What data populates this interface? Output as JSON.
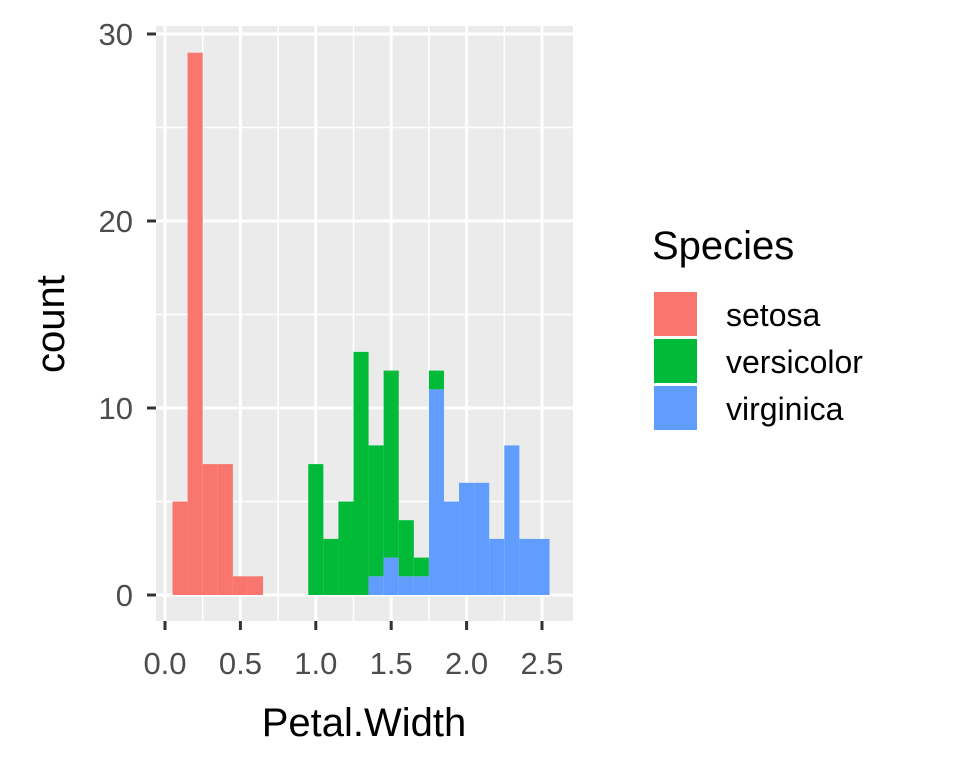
{
  "chart_data": {
    "type": "bar",
    "subtype": "stacked-histogram",
    "title": "",
    "xlabel": "Petal.Width",
    "ylabel": "count",
    "xlim": [
      0.0,
      2.6
    ],
    "ylim": [
      0,
      30
    ],
    "x_ticks": [
      "0.0",
      "0.5",
      "1.0",
      "1.5",
      "2.0",
      "2.5"
    ],
    "y_ticks": [
      "0",
      "10",
      "20",
      "30"
    ],
    "grid": true,
    "bin_width": 0.1,
    "bin_starts": [
      0.05,
      0.15,
      0.25,
      0.35,
      0.45,
      0.55,
      0.65,
      0.75,
      0.85,
      0.95,
      1.05,
      1.15,
      1.25,
      1.35,
      1.45,
      1.55,
      1.65,
      1.75,
      1.85,
      1.95,
      2.05,
      2.15,
      2.25,
      2.35,
      2.45
    ],
    "legend": {
      "title": "Species",
      "position": "right"
    },
    "series": [
      {
        "name": "setosa",
        "color": "#F8766D",
        "values": [
          5,
          29,
          7,
          7,
          1,
          1,
          0,
          0,
          0,
          0,
          0,
          0,
          0,
          0,
          0,
          0,
          0,
          0,
          0,
          0,
          0,
          0,
          0,
          0,
          0
        ]
      },
      {
        "name": "versicolor",
        "color": "#00BA38",
        "values": [
          0,
          0,
          0,
          0,
          0,
          0,
          0,
          0,
          0,
          7,
          3,
          5,
          13,
          7,
          10,
          3,
          1,
          1,
          0,
          0,
          0,
          0,
          0,
          0,
          0
        ]
      },
      {
        "name": "virginica",
        "color": "#619CFF",
        "values": [
          0,
          0,
          0,
          0,
          0,
          0,
          0,
          0,
          0,
          0,
          0,
          0,
          0,
          1,
          2,
          1,
          1,
          11,
          5,
          6,
          6,
          3,
          8,
          3,
          3
        ]
      }
    ]
  }
}
